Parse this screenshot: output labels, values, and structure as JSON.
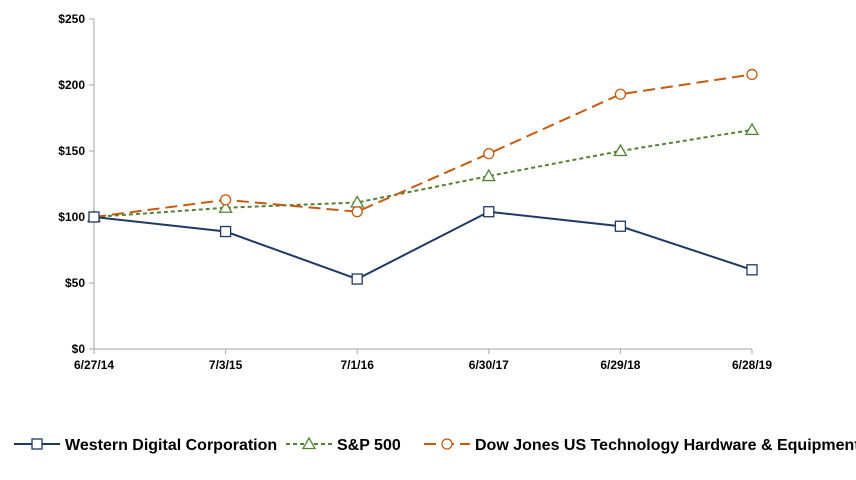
{
  "chart_data": {
    "type": "line",
    "title": "",
    "xlabel": "",
    "ylabel": "",
    "categories": [
      "6/27/14",
      "7/3/15",
      "7/1/16",
      "6/30/17",
      "6/29/18",
      "6/28/19"
    ],
    "y_ticks": [
      0,
      50,
      100,
      150,
      200,
      250
    ],
    "y_tick_labels": [
      "$0",
      "$50",
      "$100",
      "$150",
      "$200",
      "$250"
    ],
    "ylim": [
      0,
      250
    ],
    "grid": false,
    "legend_position": "bottom",
    "series": [
      {
        "name": "Western Digital Corporation",
        "values": [
          100,
          89,
          53,
          104,
          93,
          60
        ],
        "color": "#1f3864",
        "dash": "solid",
        "marker": "square"
      },
      {
        "name": "S&P 500",
        "values": [
          100,
          107,
          111,
          131,
          150,
          166
        ],
        "color": "#548235",
        "dash": "dotted",
        "marker": "triangle"
      },
      {
        "name": "Dow Jones US Technology Hardware & Equipment",
        "values": [
          100,
          113,
          104,
          148,
          193,
          208
        ],
        "color": "#c55a11",
        "dash": "dashed",
        "marker": "circle"
      }
    ]
  }
}
